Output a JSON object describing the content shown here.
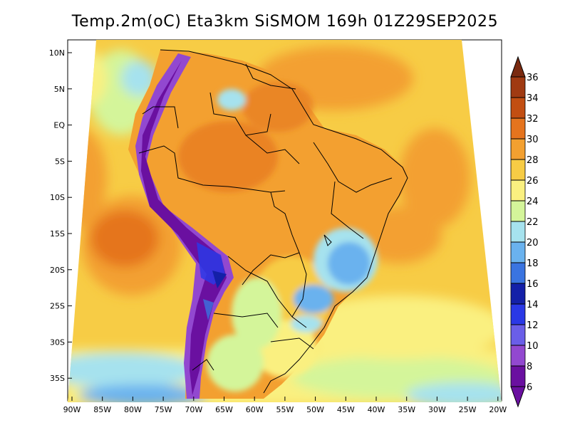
{
  "title": "Temp.2m(oC) Eta3km SiSMOM 169h 01Z29SEP2025",
  "map": {
    "lat_labels": [
      "10N",
      "5N",
      "EQ",
      "5S",
      "10S",
      "15S",
      "20S",
      "25S",
      "30S",
      "35S"
    ],
    "lon_labels": [
      "90W",
      "85W",
      "80W",
      "75W",
      "70W",
      "65W",
      "60W",
      "55W",
      "50W",
      "45W",
      "40W",
      "35W",
      "30W",
      "25W",
      "20W"
    ]
  },
  "colorbar": {
    "labels": [
      "36",
      "34",
      "32",
      "30",
      "28",
      "26",
      "24",
      "22",
      "20",
      "18",
      "16",
      "14",
      "12",
      "10",
      "8",
      "6"
    ],
    "colors": [
      "#7a2a10",
      "#a03a12",
      "#c24e12",
      "#e5741e",
      "#f3a030",
      "#f7cc45",
      "#faf080",
      "#d4f59a",
      "#a6e2ee",
      "#6ab2ee",
      "#3a74e0",
      "#1420a8",
      "#2a38e6",
      "#6a5ee8",
      "#9248d0",
      "#6a10a0"
    ]
  }
}
